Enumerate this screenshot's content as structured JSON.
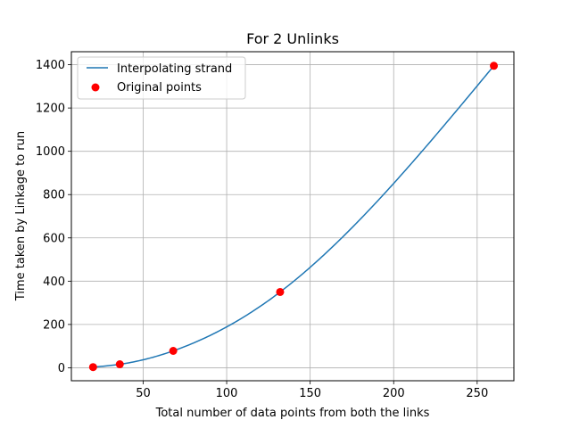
{
  "chart_data": {
    "type": "line",
    "title": "For 2 Unlinks",
    "xlabel": "Total number of data points from both the links",
    "ylabel": "Time taken by Linkage to run",
    "xlim": [
      7,
      272
    ],
    "ylim": [
      -60,
      1460
    ],
    "xticks": [
      50,
      100,
      150,
      200,
      250
    ],
    "yticks": [
      0,
      200,
      400,
      600,
      800,
      1000,
      1200,
      1400
    ],
    "grid": true,
    "legend_position": "upper left",
    "series": [
      {
        "name": "Interpolating strand",
        "kind": "line",
        "color": "#1f77b4",
        "x": [
          20,
          36,
          68,
          132,
          260
        ],
        "y": [
          3,
          16,
          78,
          350,
          1395
        ]
      },
      {
        "name": "Original points",
        "kind": "scatter",
        "color": "#ff0000",
        "x": [
          20,
          36,
          68,
          132,
          260
        ],
        "y": [
          3,
          16,
          78,
          350,
          1395
        ]
      }
    ]
  }
}
